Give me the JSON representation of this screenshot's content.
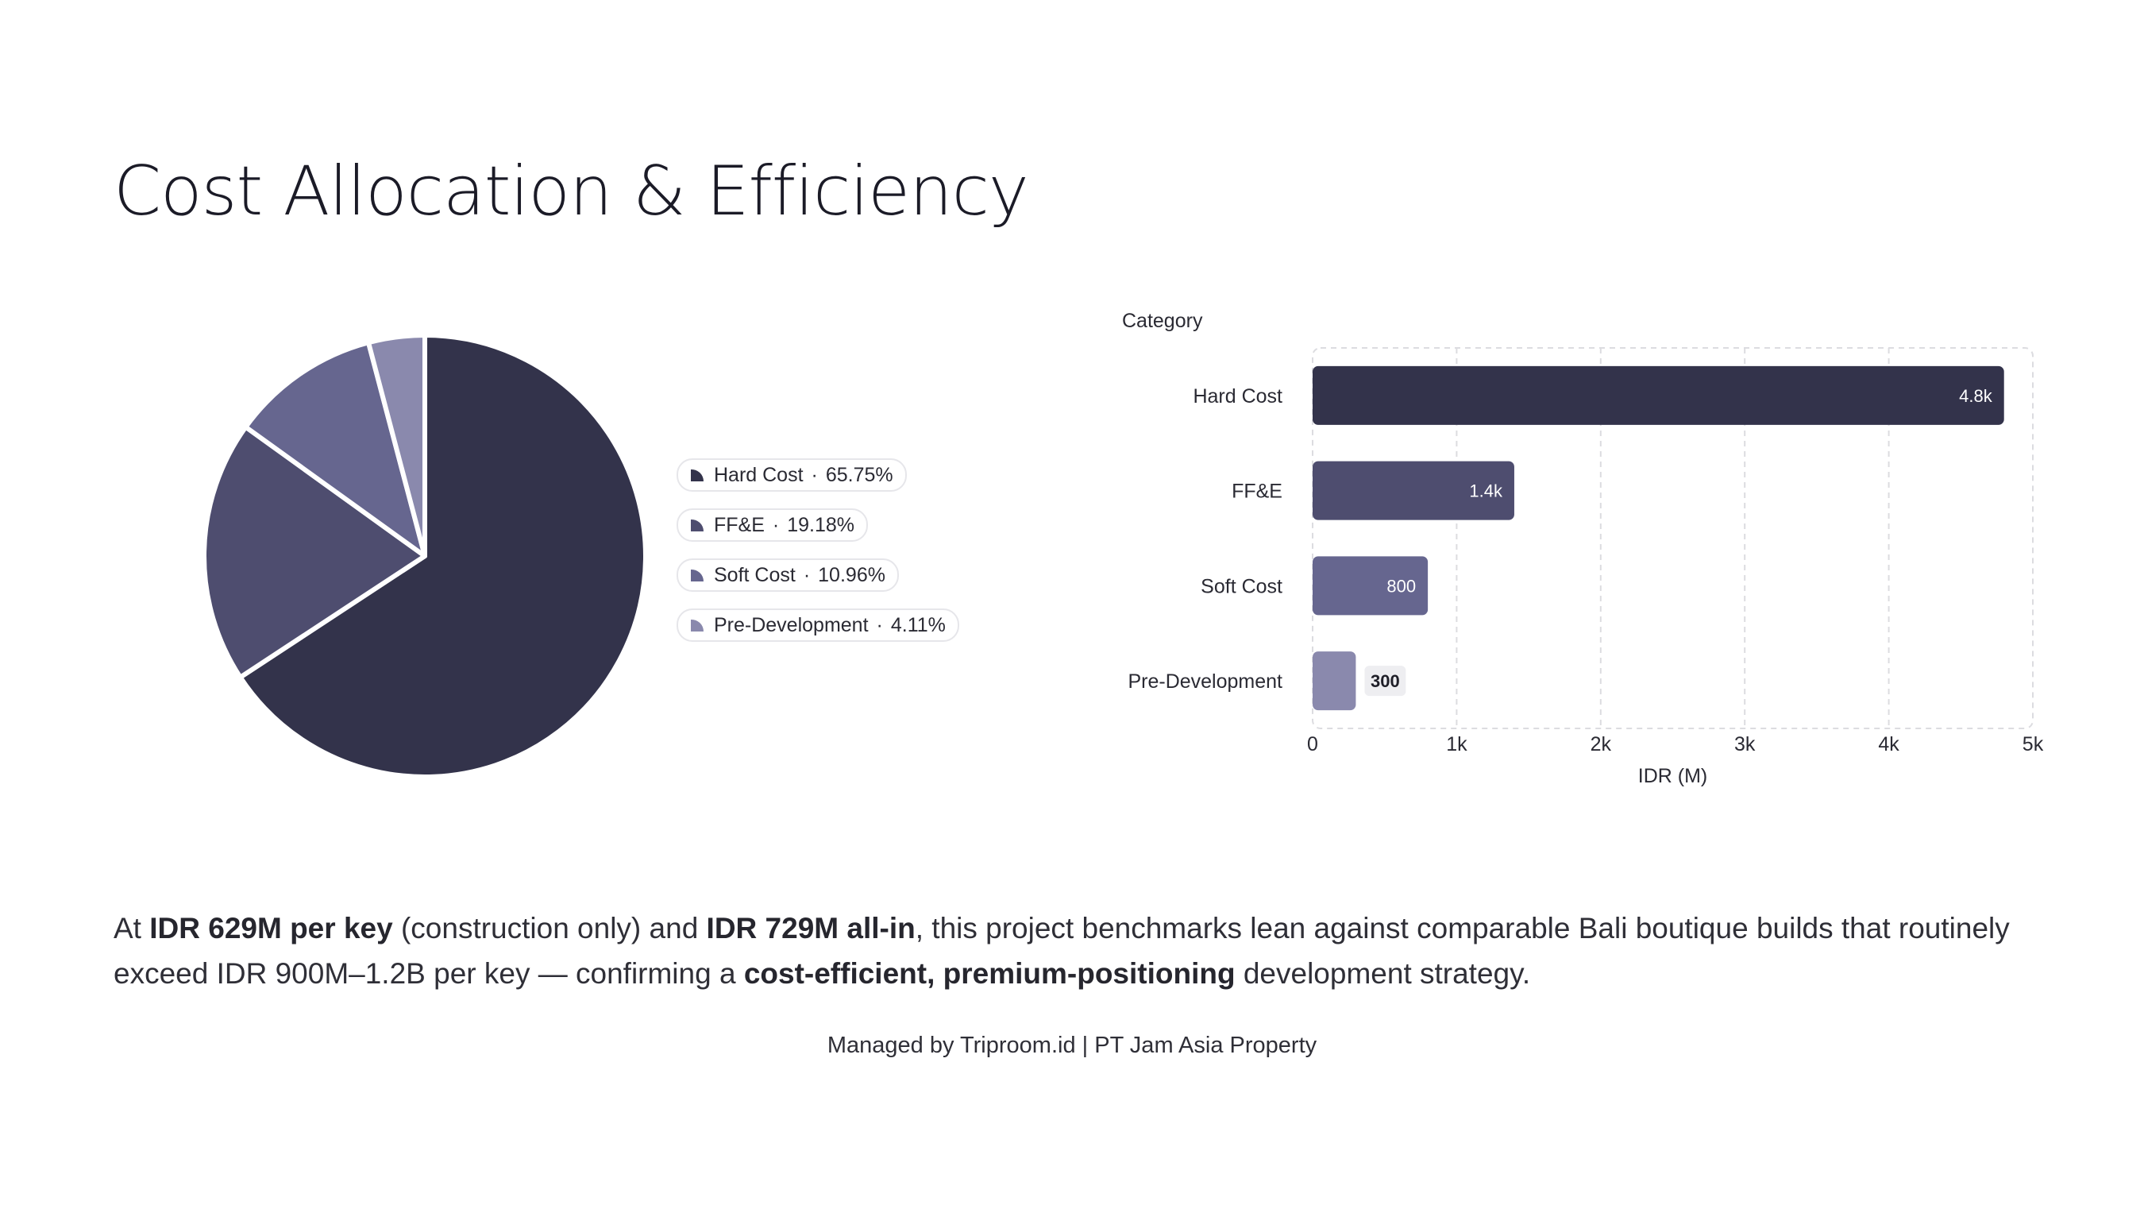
{
  "page": {
    "title": "Cost Allocation & Efficiency",
    "footer": "Managed by Triproom.id | PT Jam Asia Property"
  },
  "summary": {
    "p1": "At ",
    "b1": "IDR 629M per key",
    "p2": " (construction only) and ",
    "b2": "IDR 729M all-in",
    "p3": ", this project benchmarks lean against comparable Bali boutique builds that routinely exceed IDR 900M–1.2B per key — confirming a ",
    "b3": "cost-efficient, premium-positioning",
    "p4": " development strategy."
  },
  "chart_data": [
    {
      "type": "pie",
      "slices": [
        {
          "label": "Hard Cost",
          "percent_label": "65.75%",
          "value": 65.75,
          "color": "#33334b"
        },
        {
          "label": "FF&E",
          "percent_label": "19.18%",
          "value": 19.18,
          "color": "#4e4d6f"
        },
        {
          "label": "Soft Cost",
          "percent_label": "10.96%",
          "value": 10.96,
          "color": "#66668f"
        },
        {
          "label": "Pre-Development",
          "percent_label": "4.11%",
          "value": 4.11,
          "color": "#8a89ad"
        }
      ],
      "legend_position": "right",
      "start_angle_deg": 0,
      "direction": "clockwise"
    },
    {
      "type": "bar",
      "orientation": "horizontal",
      "categories": [
        "Hard Cost",
        "FF&E",
        "Soft Cost",
        "Pre-Development"
      ],
      "values": [
        4800,
        1400,
        800,
        300
      ],
      "value_labels": [
        "4.8k",
        "1.4k",
        "800",
        "300"
      ],
      "colors": [
        "#33334b",
        "#4e4d6f",
        "#66668f",
        "#8a89ad"
      ],
      "xlabel": "IDR (M)",
      "ylabel": "Category",
      "xlim": [
        0,
        5000
      ],
      "xticks": [
        0,
        1000,
        2000,
        3000,
        4000,
        5000
      ],
      "xtick_labels": [
        "0",
        "1k",
        "2k",
        "3k",
        "4k",
        "5k"
      ],
      "grid": true
    }
  ]
}
